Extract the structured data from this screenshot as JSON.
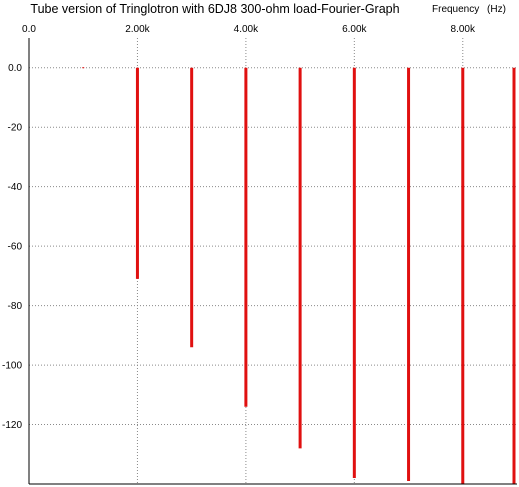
{
  "chart_data": {
    "type": "bar",
    "title": "Tube version of Tringlotron with 6DJ8 300-ohm load-Fourier-Graph",
    "xlabel": "Frequency   (Hz)",
    "ylabel": "",
    "xlim": [
      0,
      9000
    ],
    "ylim": [
      -140,
      10
    ],
    "x_tick_labels": [
      "0.0",
      "2.00k",
      "4.00k",
      "6.00k",
      "8.00k"
    ],
    "x_ticks": [
      0,
      2000,
      4000,
      6000,
      8000
    ],
    "y_tick_labels": [
      "0.0",
      "-20",
      "-40",
      "-60",
      "-80",
      "-100",
      "-120"
    ],
    "y_ticks": [
      0,
      -20,
      -40,
      -60,
      -80,
      -100,
      -120
    ],
    "grid": true,
    "grid_style": "dotted",
    "bar_color": "#e01010",
    "bar_baseline": 0,
    "x": [
      1000,
      2000,
      3000,
      4000,
      5000,
      6000,
      7000,
      8000,
      9000
    ],
    "values": [
      0,
      -71,
      -94,
      -114,
      -128,
      -138,
      -139,
      -140,
      -141
    ]
  }
}
